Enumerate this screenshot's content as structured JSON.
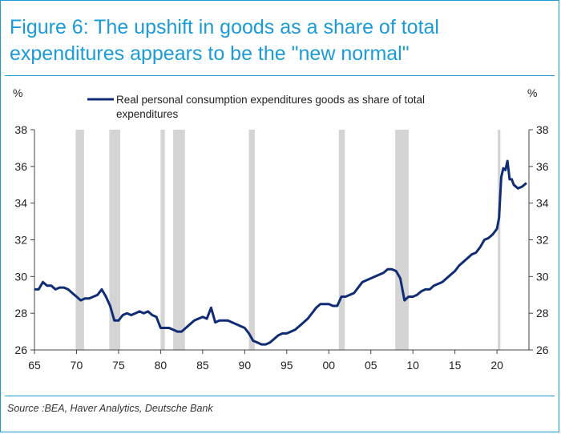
{
  "title": "Figure 6: The upshift in goods as a share of total expenditures appears to be the \"new normal\"",
  "source": "Source :BEA, Haver Analytics, Deutsche Bank",
  "colors": {
    "accent": "#1b9bd7",
    "series": "#0f2c74",
    "recession": "#d4d4d4"
  },
  "chart_data": {
    "type": "line",
    "title": "",
    "ylabel_left": "%",
    "ylabel_right": "%",
    "xlabel": "",
    "xlim": [
      1965,
      2023.8
    ],
    "ylim": [
      26,
      38
    ],
    "x_ticks": [
      1965,
      1970,
      1975,
      1980,
      1985,
      1990,
      1995,
      2000,
      2005,
      2010,
      2015,
      2020
    ],
    "x_tick_labels": [
      "65",
      "70",
      "75",
      "80",
      "85",
      "90",
      "95",
      "00",
      "05",
      "10",
      "15",
      "20"
    ],
    "y_ticks": [
      26,
      28,
      30,
      32,
      34,
      36,
      38
    ],
    "y_tick_labels": [
      "26",
      "28",
      "30",
      "32",
      "34",
      "36",
      "38"
    ],
    "legend": {
      "position": "top",
      "line1": "Real personal consumption expenditures goods as share of total",
      "line2": "expenditures"
    },
    "recessions": [
      [
        1969.9,
        1970.9
      ],
      [
        1973.9,
        1975.2
      ],
      [
        1980.0,
        1980.5
      ],
      [
        1981.5,
        1982.9
      ],
      [
        1990.5,
        1991.2
      ],
      [
        2001.2,
        2001.9
      ],
      [
        2007.9,
        2009.5
      ],
      [
        2020.1,
        2020.4
      ]
    ],
    "series": [
      {
        "name": "Real personal consumption expenditures goods as share of total expenditures",
        "x": [
          1965.0,
          1965.5,
          1966.0,
          1966.5,
          1967.0,
          1967.5,
          1968.0,
          1968.5,
          1969.0,
          1969.5,
          1970.0,
          1970.5,
          1971.0,
          1971.5,
          1972.0,
          1972.5,
          1973.0,
          1973.5,
          1974.0,
          1974.5,
          1975.0,
          1975.5,
          1976.0,
          1976.5,
          1977.0,
          1977.5,
          1978.0,
          1978.5,
          1979.0,
          1979.5,
          1980.0,
          1980.5,
          1981.0,
          1981.5,
          1982.0,
          1982.5,
          1983.0,
          1983.5,
          1984.0,
          1984.5,
          1985.0,
          1985.5,
          1986.0,
          1986.5,
          1987.0,
          1987.5,
          1988.0,
          1988.5,
          1989.0,
          1989.5,
          1990.0,
          1990.5,
          1991.0,
          1991.5,
          1992.0,
          1992.5,
          1993.0,
          1993.5,
          1994.0,
          1994.5,
          1995.0,
          1995.5,
          1996.0,
          1996.5,
          1997.0,
          1997.5,
          1998.0,
          1998.5,
          1999.0,
          1999.5,
          2000.0,
          2000.5,
          2001.0,
          2001.5,
          2002.0,
          2002.5,
          2003.0,
          2003.5,
          2004.0,
          2004.5,
          2005.0,
          2005.5,
          2006.0,
          2006.5,
          2007.0,
          2007.5,
          2008.0,
          2008.5,
          2009.0,
          2009.5,
          2010.0,
          2010.5,
          2011.0,
          2011.5,
          2012.0,
          2012.5,
          2013.0,
          2013.5,
          2014.0,
          2014.5,
          2015.0,
          2015.5,
          2016.0,
          2016.5,
          2017.0,
          2017.5,
          2018.0,
          2018.5,
          2019.0,
          2019.5,
          2020.0,
          2020.25,
          2020.5,
          2020.75,
          2021.0,
          2021.25,
          2021.5,
          2021.75,
          2022.0,
          2022.5,
          2023.0,
          2023.5
        ],
        "y": [
          29.3,
          29.3,
          29.7,
          29.5,
          29.5,
          29.3,
          29.4,
          29.4,
          29.3,
          29.1,
          28.9,
          28.7,
          28.8,
          28.8,
          28.9,
          29.0,
          29.3,
          28.9,
          28.4,
          27.6,
          27.6,
          27.9,
          28.0,
          27.9,
          28.0,
          28.1,
          28.0,
          28.1,
          27.9,
          27.8,
          27.2,
          27.2,
          27.2,
          27.1,
          27.0,
          27.0,
          27.2,
          27.4,
          27.6,
          27.7,
          27.8,
          27.7,
          28.3,
          27.5,
          27.6,
          27.6,
          27.6,
          27.5,
          27.4,
          27.3,
          27.2,
          26.9,
          26.5,
          26.4,
          26.3,
          26.3,
          26.4,
          26.6,
          26.8,
          26.9,
          26.9,
          27.0,
          27.1,
          27.3,
          27.5,
          27.7,
          28.0,
          28.3,
          28.5,
          28.5,
          28.5,
          28.4,
          28.4,
          28.9,
          28.9,
          29.0,
          29.1,
          29.4,
          29.7,
          29.8,
          29.9,
          30.0,
          30.1,
          30.2,
          30.4,
          30.4,
          30.3,
          29.9,
          28.7,
          28.9,
          28.9,
          29.0,
          29.2,
          29.3,
          29.3,
          29.5,
          29.6,
          29.7,
          29.9,
          30.1,
          30.3,
          30.6,
          30.8,
          31.0,
          31.2,
          31.3,
          31.6,
          32.0,
          32.1,
          32.3,
          32.6,
          33.2,
          35.4,
          35.9,
          35.8,
          36.3,
          35.3,
          35.3,
          35.0,
          34.8,
          34.9,
          35.1
        ]
      }
    ]
  }
}
